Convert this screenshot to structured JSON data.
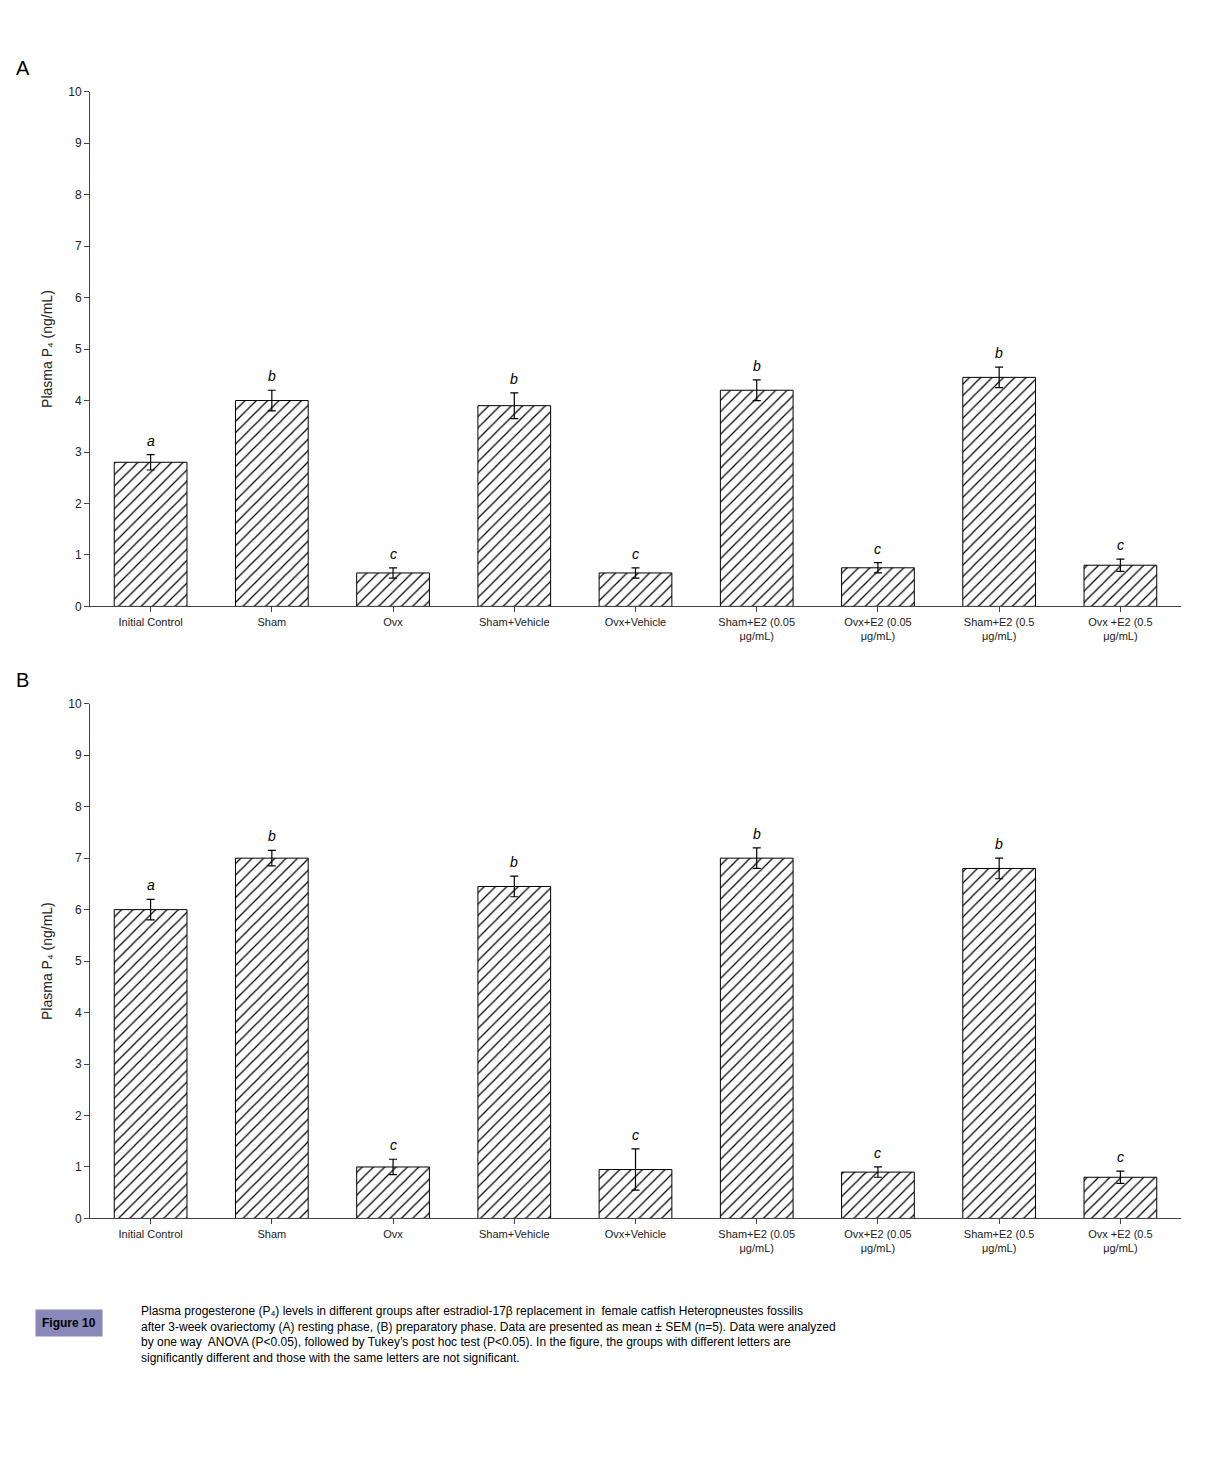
{
  "chart_data": [
    {
      "type": "bar",
      "title": "A",
      "categories": [
        "Initial Control",
        "Sham",
        "Ovx",
        "Sham+Vehicle",
        "Ovx+Vehicle",
        "Sham+E2 (0.05\nμg/mL)",
        "Ovx+E2 (0.05\nμg/mL)",
        "Sham+E2 (0.5\nμg/mL)",
        "Ovx +E2 (0.5\nμg/mL)"
      ],
      "values": [
        2.8,
        4.0,
        0.65,
        3.9,
        0.65,
        4.2,
        0.75,
        4.45,
        0.8
      ],
      "errors": [
        0.15,
        0.2,
        0.1,
        0.25,
        0.1,
        0.2,
        0.1,
        0.2,
        0.12
      ],
      "letters": [
        "a",
        "b",
        "c",
        "b",
        "c",
        "b",
        "c",
        "b",
        "c"
      ],
      "ylabel": "Plasma P₄ (ng/mL)",
      "ylim": [
        0,
        10
      ],
      "yticks": [
        0,
        1,
        2,
        3,
        4,
        5,
        6,
        7,
        8,
        9,
        10
      ],
      "color": "#ffffff",
      "grid": false
    },
    {
      "type": "bar",
      "title": "B",
      "categories": [
        "Initial Control",
        "Sham",
        "Ovx",
        "Sham+Vehicle",
        "Ovx+Vehicle",
        "Sham+E2 (0.05\nμg/mL)",
        "Ovx+E2 (0.05\nμg/mL)",
        "Sham+E2 (0.5\nμg/mL)",
        "Ovx +E2 (0.5\nμg/mL)"
      ],
      "values": [
        6.0,
        7.0,
        1.0,
        6.45,
        0.95,
        7.0,
        0.9,
        6.8,
        0.8
      ],
      "errors": [
        0.2,
        0.15,
        0.15,
        0.2,
        0.4,
        0.2,
        0.1,
        0.2,
        0.12
      ],
      "letters": [
        "a",
        "b",
        "c",
        "b",
        "c",
        "b",
        "c",
        "b",
        "c"
      ],
      "ylabel": "Plasma P₄ (ng/mL)",
      "ylim": [
        0,
        10
      ],
      "yticks": [
        0,
        1,
        2,
        3,
        4,
        5,
        6,
        7,
        8,
        9,
        10
      ],
      "color": "#ffffff",
      "grid": false
    }
  ],
  "caption": {
    "label": "Figure 10",
    "color": "#8888bb",
    "text": [
      "Plasma progesterone (P₄) levels in different groups after estradiol-17β replacement in  female catfish Heteropneustes fossilis",
      "after 3-week ovariectomy (A) resting phase, (B) preparatory phase. Data are presented as mean ± SEM (n=5). Data were analyzed",
      "by one way  ANOVA (P<0.05), followed by Tukey’s post hoc test (P<0.05). In the figure, the groups with different letters are",
      "significantly different and those with the same letters are not significant."
    ]
  }
}
